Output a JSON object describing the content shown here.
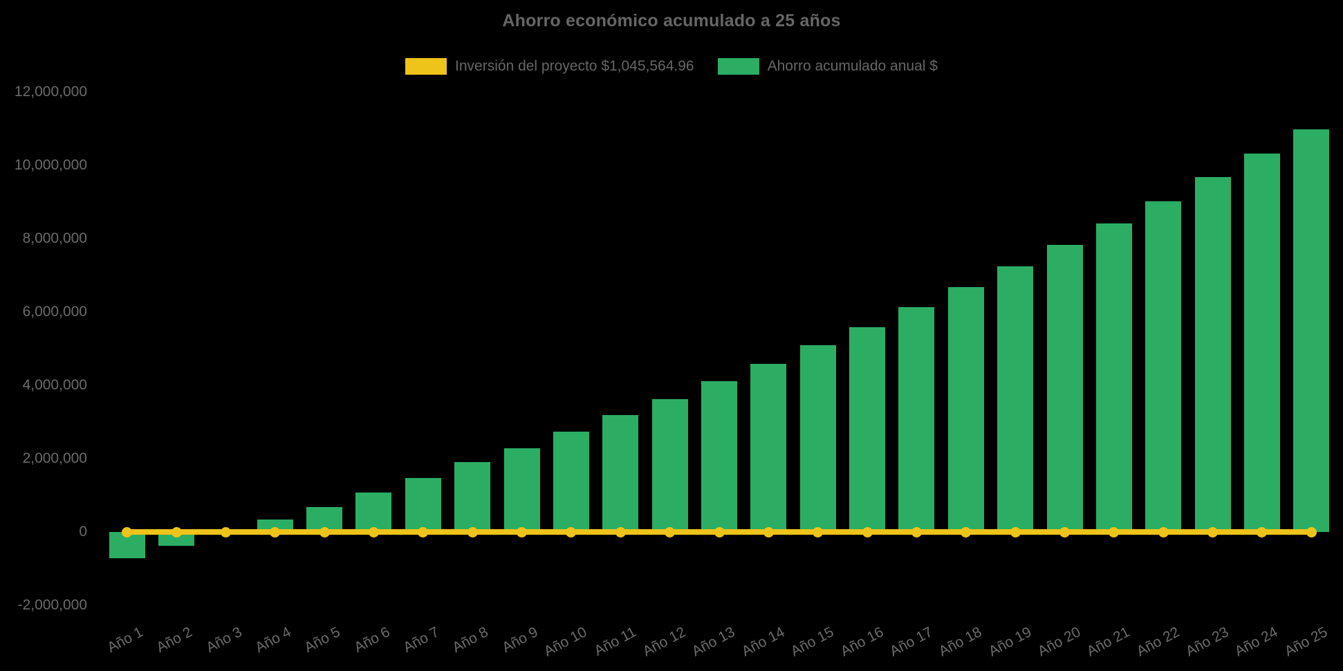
{
  "chart_data": {
    "type": "bar",
    "title": "Ahorro económico acumulado a 25 años",
    "categories": [
      "Año 1",
      "Año 2",
      "Año 3",
      "Año 4",
      "Año 5",
      "Año 6",
      "Año 7",
      "Año 8",
      "Año 9",
      "Año 10",
      "Año 11",
      "Año 12",
      "Año 13",
      "Año 14",
      "Año 15",
      "Año 16",
      "Año 17",
      "Año 18",
      "Año 19",
      "Año 20",
      "Año 21",
      "Año 22",
      "Año 23",
      "Año 24",
      "Año 25"
    ],
    "series": [
      {
        "name": "Inversión del proyecto $1,045,564.96",
        "type": "line",
        "color": "#EFC41A",
        "marker": "circle",
        "investment_value": 1045564.96,
        "plotted_at_value": 0
      },
      {
        "name": "Ahorro acumulado anual $",
        "type": "bar",
        "color": "#2BAE63",
        "values": [
          -715000,
          -380000,
          -30000,
          340000,
          680000,
          1075000,
          1470000,
          1905000,
          2285000,
          2740000,
          3190000,
          3625000,
          4115000,
          4585000,
          5095000,
          5590000,
          6130000,
          6680000,
          7245000,
          7830000,
          8415000,
          9020000,
          9680000,
          10320000,
          10980000
        ]
      }
    ],
    "xlabel": "",
    "ylabel": "",
    "ylim": [
      -2000000,
      12000000
    ],
    "ytick_step": 2000000,
    "ytick_labels": [
      "12,000,000",
      "10,000,000",
      "8,000,000",
      "6,000,000",
      "4,000,000",
      "2,000,000",
      "0",
      "-2,000,000"
    ],
    "grid": false,
    "legend_position": "top",
    "background_color": "#000000",
    "text_color": "#666666"
  }
}
